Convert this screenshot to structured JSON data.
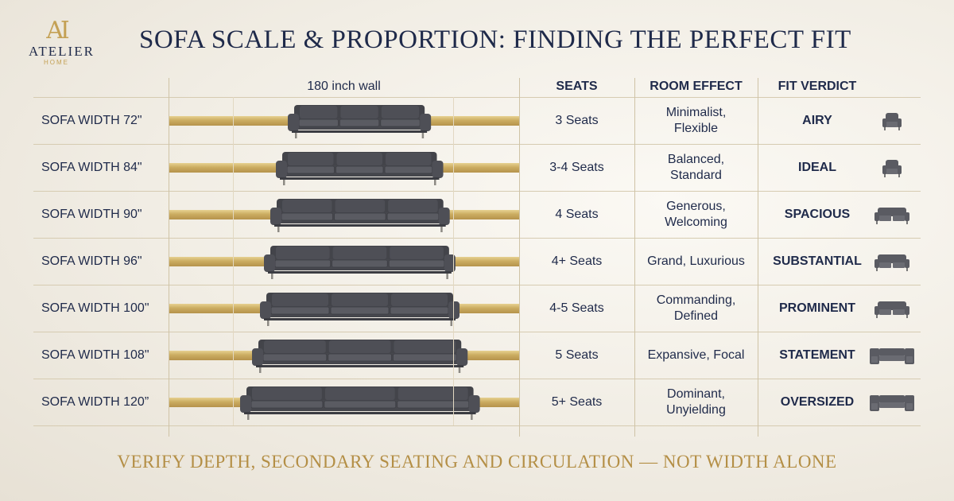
{
  "brand": {
    "mark": "AI",
    "name": "ATELIER",
    "sub": "HOME"
  },
  "title": "SOFA SCALE & PROPORTION: FINDING THE PERFECT FIT",
  "headers": {
    "wall": "180 inch wall",
    "seats": "SEATS",
    "effect": "ROOM EFFECT",
    "verdict": "FIT VERDICT"
  },
  "rows": [
    {
      "label": "SOFA WIDTH 72\"",
      "width_in": 72,
      "seats": "3 Seats",
      "effect": "Minimalist,\nFlexible",
      "verdict": "AIRY",
      "icon": "armchair-icon"
    },
    {
      "label": "SOFA WIDTH  84\"",
      "width_in": 84,
      "seats": "3-4 Seats",
      "effect": "Balanced,\nStandard",
      "verdict": "IDEAL",
      "icon": "armchair-icon"
    },
    {
      "label": "SOFA WIDTH  90\"",
      "width_in": 90,
      "seats": "4 Seats",
      "effect": "Generous,\nWelcoming",
      "verdict": "SPACIOUS",
      "icon": "loveseat-icon"
    },
    {
      "label": "SOFA WIDTH  96\"",
      "width_in": 96,
      "seats": "4+ Seats",
      "effect": "Grand, Luxurious",
      "verdict": "SUBSTANTIAL",
      "icon": "loveseat-icon"
    },
    {
      "label": "SOFA WIDTH 100\"",
      "width_in": 100,
      "seats": "4-5 Seats",
      "effect": "Commanding,\nDefined",
      "verdict": "PROMINENT",
      "icon": "loveseat-icon"
    },
    {
      "label": "SOFA WIDTH 108\"",
      "width_in": 108,
      "seats": "5 Seats",
      "effect": "Expansive, Focal",
      "verdict": "STATEMENT",
      "icon": "sectional-icon"
    },
    {
      "label": "SOFA WIDTH 120”",
      "width_in": 120,
      "seats": "5+ Seats",
      "effect": "Dominant,\nUnyielding",
      "verdict": "OVERSIZED",
      "icon": "sectional-icon"
    }
  ],
  "wall_width_in": 180,
  "footer": "VERIFY DEPTH, SECONDARY SEATING AND CIRCULATION — NOT WIDTH ALONE",
  "colors": {
    "navy": "#1f2a4a",
    "gold": "#c4a155",
    "sofa": "#4e4f56",
    "background": "#f4f1ea"
  }
}
